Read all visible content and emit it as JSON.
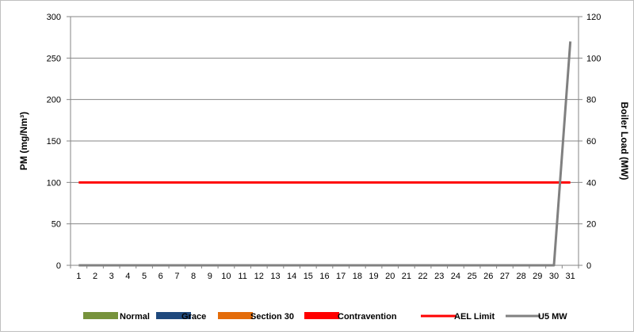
{
  "chart_data": {
    "type": "bar",
    "title": "",
    "ylabel": "PM (mg/Nm³)",
    "y2label": "Boiler Load (MW)",
    "xlabel": "",
    "categories": [
      "1",
      "2",
      "3",
      "4",
      "5",
      "6",
      "7",
      "8",
      "9",
      "10",
      "11",
      "12",
      "13",
      "14",
      "15",
      "16",
      "17",
      "18",
      "19",
      "20",
      "21",
      "22",
      "23",
      "24",
      "25",
      "26",
      "27",
      "28",
      "29",
      "30",
      "31"
    ],
    "ylim": [
      0,
      300
    ],
    "y2lim": [
      0,
      120
    ],
    "yticks": [
      "0",
      "50",
      "100",
      "150",
      "200",
      "250",
      "300"
    ],
    "y2ticks": [
      "0",
      "20",
      "40",
      "60",
      "80",
      "100",
      "120"
    ],
    "grid": true,
    "legend_position": "bottom",
    "series": [
      {
        "name": "Normal",
        "kind": "bar",
        "axis": "left",
        "color": "#77933c",
        "values": [
          0,
          0,
          0,
          0,
          0,
          0,
          0,
          0,
          0,
          0,
          0,
          0,
          0,
          0,
          0,
          0,
          0,
          0,
          0,
          0,
          0,
          0,
          0,
          0,
          0,
          0,
          0,
          0,
          0,
          0,
          0
        ]
      },
      {
        "name": "Grace",
        "kind": "bar",
        "axis": "left",
        "color": "#1f497d",
        "values": [
          0,
          0,
          0,
          0,
          0,
          0,
          0,
          0,
          0,
          0,
          0,
          0,
          0,
          0,
          0,
          0,
          0,
          0,
          0,
          0,
          0,
          0,
          0,
          0,
          0,
          0,
          0,
          0,
          0,
          0,
          0
        ]
      },
      {
        "name": "Section 30",
        "kind": "bar",
        "axis": "left",
        "color": "#e46c0a",
        "values": [
          0,
          0,
          0,
          0,
          0,
          0,
          0,
          0,
          0,
          0,
          0,
          0,
          0,
          0,
          0,
          0,
          0,
          0,
          0,
          0,
          0,
          0,
          0,
          0,
          0,
          0,
          0,
          0,
          0,
          0,
          0
        ]
      },
      {
        "name": "Contravention",
        "kind": "bar",
        "axis": "left",
        "color": "#ff0000",
        "values": [
          0,
          0,
          0,
          0,
          0,
          0,
          0,
          0,
          0,
          0,
          0,
          0,
          0,
          0,
          0,
          0,
          0,
          0,
          0,
          0,
          0,
          0,
          0,
          0,
          0,
          0,
          0,
          0,
          0,
          0,
          0
        ]
      },
      {
        "name": "AEL Limit",
        "kind": "line",
        "axis": "left",
        "color": "#ff0000",
        "values": [
          100,
          100,
          100,
          100,
          100,
          100,
          100,
          100,
          100,
          100,
          100,
          100,
          100,
          100,
          100,
          100,
          100,
          100,
          100,
          100,
          100,
          100,
          100,
          100,
          100,
          100,
          100,
          100,
          100,
          100,
          100
        ]
      },
      {
        "name": "U5 MW",
        "kind": "line",
        "axis": "right",
        "color": "#808080",
        "values": [
          0,
          0,
          0,
          0,
          0,
          0,
          0,
          0,
          0,
          0,
          0,
          0,
          0,
          0,
          0,
          0,
          0,
          0,
          0,
          0,
          0,
          0,
          0,
          0,
          0,
          0,
          0,
          0,
          0,
          0,
          108
        ]
      }
    ]
  }
}
